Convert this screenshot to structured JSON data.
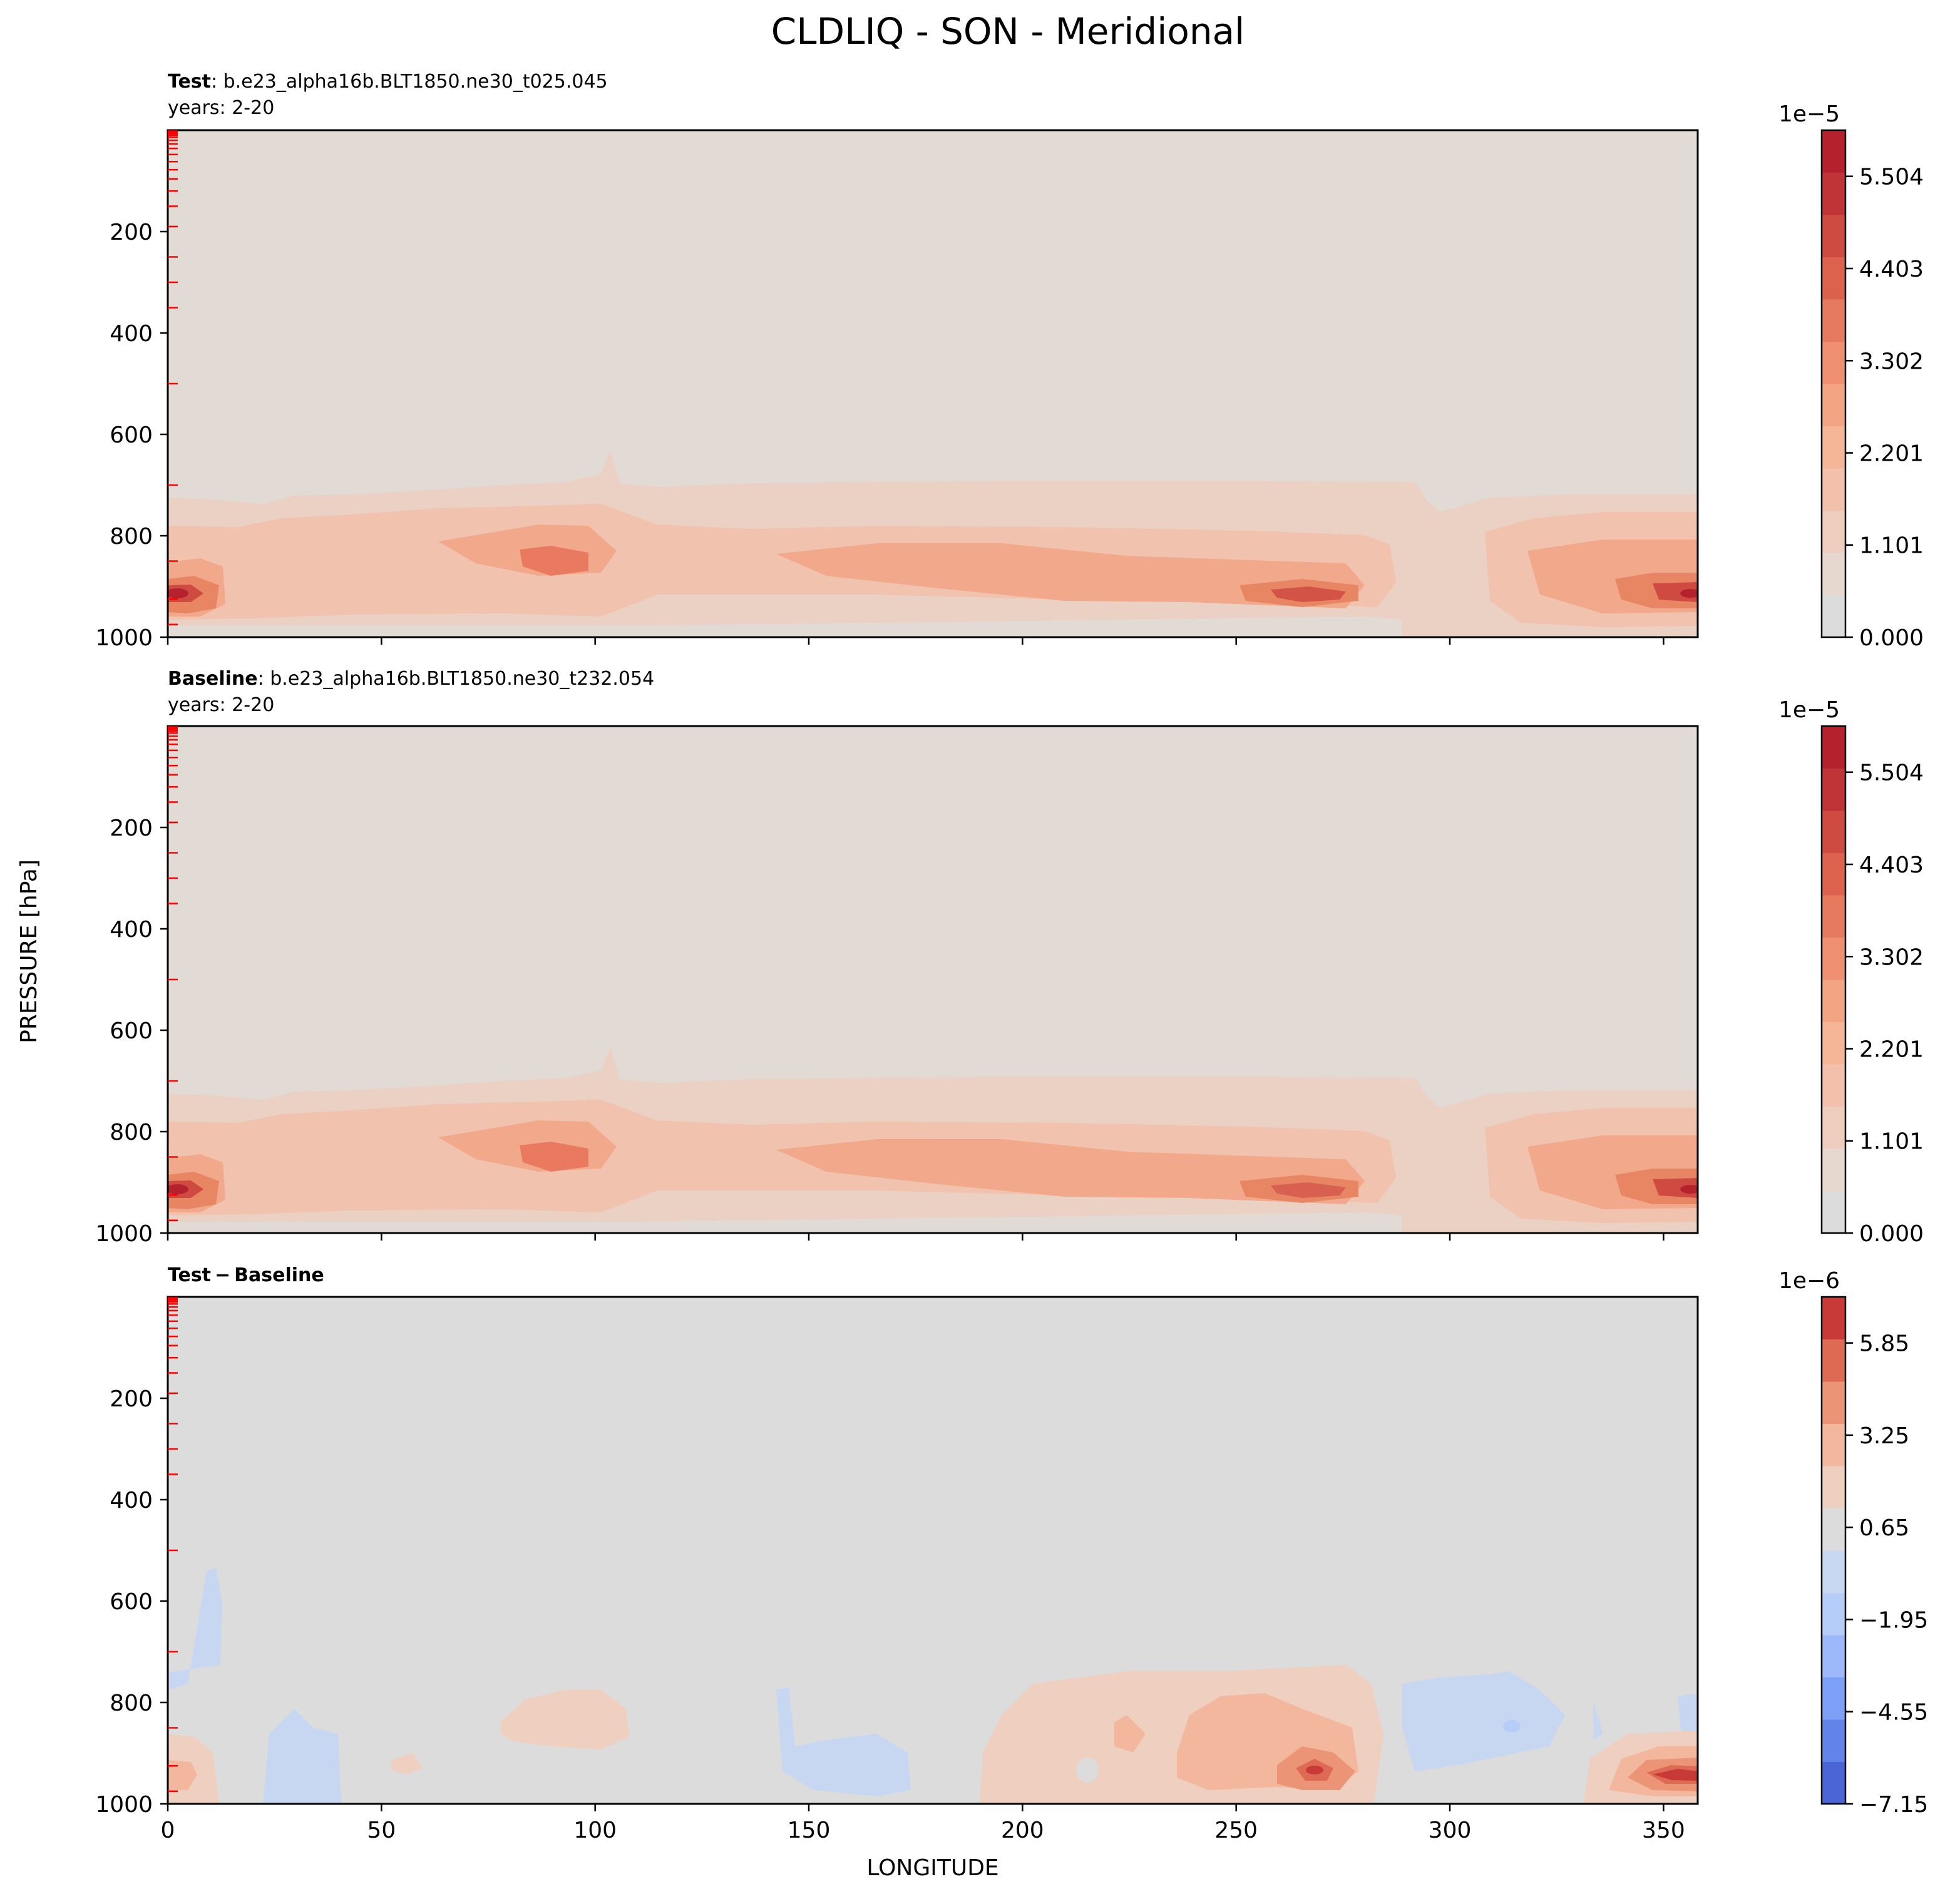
{
  "figure": {
    "title": "CLDLIQ - SON - Meridional",
    "ylabel": "PRESSURE [hPa]",
    "xlabel": "LONGITUDE"
  },
  "chart_data": [
    {
      "type": "heatmap",
      "panel": "test",
      "title_bold": "Test",
      "title_rest": ": b.e23_alpha16b.BLT1850.ne30_t025.045",
      "subtitle": "years: 2-20",
      "x": {
        "range": [
          0,
          358
        ],
        "ticks": [
          0,
          50,
          100,
          150,
          200,
          250,
          300,
          350
        ],
        "tick_labels_shown": false
      },
      "y": {
        "range": [
          1000,
          0
        ],
        "ticks": [
          200,
          400,
          600,
          800,
          1000
        ],
        "inverted": true
      },
      "colorbar": {
        "cmap": "coolwarm",
        "range": [
          0,
          6.055e-05
        ],
        "offset_label": "1e−5",
        "tick_labels": [
          "0.000",
          "1.101",
          "2.201",
          "3.302",
          "4.403",
          "5.504"
        ],
        "levels": [
          "#dddcdc",
          "#e6d7cf",
          "#eeccbe",
          "#f3c1ab",
          "#f5b597",
          "#f3a483",
          "#ee9070",
          "#e67a5e",
          "#dc624e",
          "#cf4a41",
          "#c03336",
          "#b5222e"
        ]
      },
      "description": "Cloud liquid maximum 0.6-5.5e-5 near 800-1000 hPa, peaks near lon 0-10, 265-275 and 350-358."
    },
    {
      "type": "heatmap",
      "panel": "baseline",
      "title_bold": "Baseline",
      "title_rest": ": b.e23_alpha16b.BLT1850.ne30_t232.054",
      "subtitle": "years: 2-20",
      "x": {
        "range": [
          0,
          358
        ],
        "ticks": [
          0,
          50,
          100,
          150,
          200,
          250,
          300,
          350
        ],
        "tick_labels_shown": false
      },
      "y": {
        "range": [
          1000,
          0
        ],
        "ticks": [
          200,
          400,
          600,
          800,
          1000
        ],
        "inverted": true
      },
      "colorbar": {
        "cmap": "coolwarm",
        "range": [
          0,
          6.055e-05
        ],
        "offset_label": "1e−5",
        "tick_labels": [
          "0.000",
          "1.101",
          "2.201",
          "3.302",
          "4.403",
          "5.504"
        ],
        "levels": [
          "#dddcdc",
          "#e6d7cf",
          "#eeccbe",
          "#f3c1ab",
          "#f5b597",
          "#f3a483",
          "#ee9070",
          "#e67a5e",
          "#dc624e",
          "#cf4a41",
          "#c03336",
          "#b5222e"
        ]
      }
    },
    {
      "type": "heatmap",
      "panel": "difference",
      "title_bold": "Test − Baseline",
      "title_rest": "",
      "subtitle": "",
      "x": {
        "range": [
          0,
          358
        ],
        "ticks": [
          0,
          50,
          100,
          150,
          200,
          250,
          300,
          350
        ],
        "tick_labels": [
          "0",
          "50",
          "100",
          "150",
          "200",
          "250",
          "300",
          "350"
        ]
      },
      "y": {
        "range": [
          1000,
          0
        ],
        "ticks": [
          200,
          400,
          600,
          800,
          1000
        ],
        "inverted": true
      },
      "colorbar": {
        "cmap": "coolwarm",
        "range": [
          -7.15e-06,
          7.15e-06
        ],
        "offset_label": "1e−6",
        "tick_values": [
          -7.15,
          -4.55,
          -1.95,
          0.65,
          3.25,
          5.85
        ],
        "tick_labels": [
          "−7.15",
          "−4.55",
          "−1.95",
          "0.65",
          "3.25",
          "5.85"
        ],
        "levels": [
          "#4a66d6",
          "#6284ea",
          "#7d9ff6",
          "#9db9fc",
          "#b7cdf9",
          "#c8d7f1",
          "#dcdcdc",
          "#efcfbf",
          "#f2b79c",
          "#ec9576",
          "#de6a54",
          "#c73a38"
        ]
      }
    }
  ],
  "colors": {
    "background_fill": "#e1dad5",
    "diff_background": "#dcdcdc",
    "level_tick_marks": "#ff0000"
  }
}
